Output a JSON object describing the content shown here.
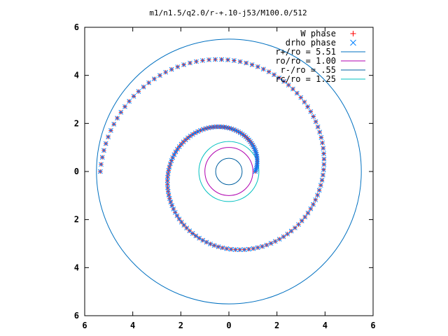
{
  "chart_data": {
    "type": "scatter",
    "title": "m1/n1.5/q2.0/r-+.10-j53/M100.0/512",
    "xlim": [
      -6,
      6
    ],
    "ylim": [
      -6,
      6
    ],
    "x_tick_labels": [
      "6",
      "4",
      "2",
      "0",
      "2",
      "4",
      "6"
    ],
    "y_tick_labels": [
      "6",
      "4",
      "2",
      "0",
      "2",
      "4",
      "6"
    ],
    "grid": false,
    "legend_position": "top-right",
    "colors": {
      "w_phase": "#ff0000",
      "drho_phase": "#0080ff",
      "r_plus": "#0070c0",
      "r_o": "#b000b0",
      "r_minus": "#0060a0",
      "r_c": "#00c0c0",
      "axes": "#000000"
    },
    "series": [
      {
        "name": "W phase",
        "marker": "+",
        "color": "#ff0000",
        "spiral": {
          "theta_start_deg": 0,
          "theta_end_deg": 540,
          "r_inner": 1.1,
          "r_outer": 5.35,
          "points": 170
        }
      },
      {
        "name": "drho phase",
        "marker": "x",
        "color": "#0080ff",
        "spiral": {
          "theta_start_deg": 0,
          "theta_end_deg": 540,
          "r_inner": 1.1,
          "r_outer": 5.35,
          "points": 170
        }
      }
    ],
    "circles": [
      {
        "name": "r+/ro = 5.51",
        "radius": 5.51,
        "color": "#0070c0"
      },
      {
        "name": "ro/ro = 1.00",
        "radius": 1.0,
        "color": "#b000b0"
      },
      {
        "name": "r-/ro = .55",
        "radius": 0.55,
        "color": "#0060a0"
      },
      {
        "name": "rc/ro = 1.25",
        "radius": 1.25,
        "color": "#00c0c0"
      }
    ]
  }
}
